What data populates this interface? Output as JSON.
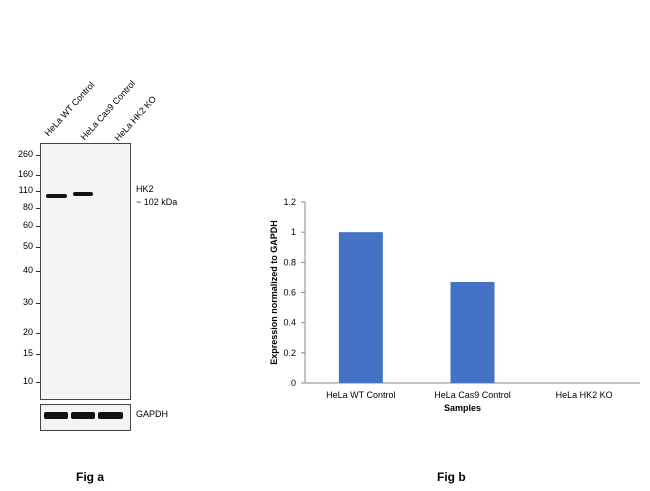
{
  "blot": {
    "lanes": [
      "HeLa WT Control",
      "HeLa Cas9 Control",
      "HeLa HK2 KO"
    ],
    "mw_markers": [
      "260",
      "160",
      "110",
      "80",
      "60",
      "50",
      "40",
      "30",
      "20",
      "15",
      "10"
    ],
    "target_label": "HK2",
    "target_size": "~ 102 kDa",
    "loading_control": "GAPDH",
    "figure_label": "Fig a"
  },
  "chart_data": {
    "type": "bar",
    "categories": [
      "HeLa WT Control",
      "HeLa Cas9 Control",
      "HeLa HK2 KO"
    ],
    "values": [
      1.0,
      0.67,
      0.0
    ],
    "xlabel": "Samples",
    "ylabel": "Expression  normalized to GAPDH",
    "ylim": [
      0,
      1.2
    ],
    "yticks": [
      "0",
      "0.2",
      "0.4",
      "0.6",
      "0.8",
      "1",
      "1.2"
    ],
    "bar_color": "#4472c4",
    "grid": false,
    "figure_label": "Fig b"
  }
}
